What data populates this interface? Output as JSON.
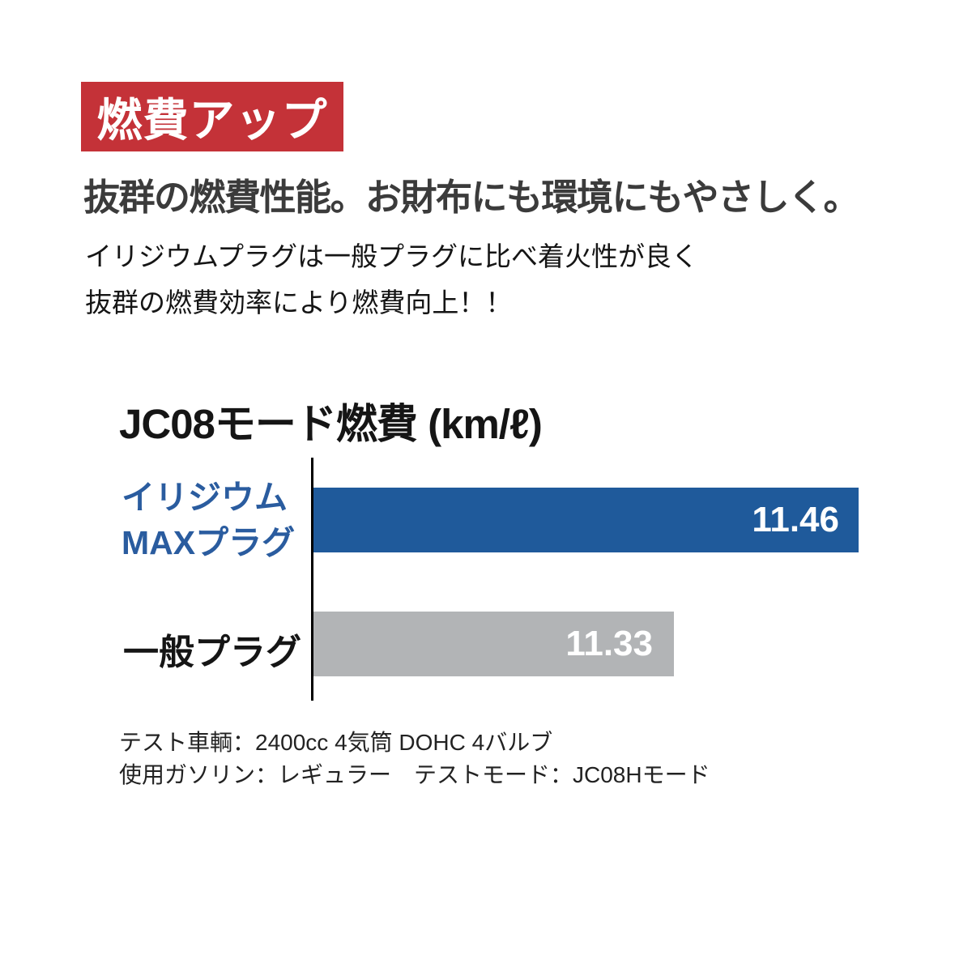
{
  "badge": {
    "label": "燃費アップ",
    "bg_color": "#c43238",
    "text_color": "#ffffff"
  },
  "headline": {
    "text": "抜群の燃費性能。お財布にも環境にもやさしく。"
  },
  "description": {
    "lines": [
      "イリジウムプラグは一般プラグに比べ着火性が良く",
      "抜群の燃費効率により燃費向上！！"
    ]
  },
  "chart": {
    "title": "JC08モード燃費 (km/ℓ)",
    "bars": [
      {
        "label_line1": "イリジウム",
        "label_line2": "MAXプラグ",
        "value": "11.46"
      },
      {
        "label": "一般プラグ",
        "value": "11.33"
      }
    ]
  },
  "chart_data": {
    "type": "bar",
    "orientation": "horizontal",
    "title": "JC08モード燃費 (km/ℓ)",
    "categories": [
      "イリジウムMAXプラグ",
      "一般プラグ"
    ],
    "values": [
      11.46,
      11.33
    ],
    "value_labels": [
      "11.46",
      "11.33"
    ],
    "unit": "km/ℓ",
    "bar_colors": [
      "#1f5a9b",
      "#b2b4b6"
    ],
    "category_label_colors": [
      "#2a5c9f",
      "#151515"
    ],
    "value_label_color": "#ffffff",
    "value_label_position": "inside-end",
    "axis_baseline_color": "#000000",
    "grid": false,
    "legend": false,
    "note": "truncated scale; bar lengths exaggerate difference"
  },
  "footnotes": [
    "テスト車輌：2400cc 4気筒 DOHC 4バルブ",
    "使用ガソリン：レギュラー　テストモード：JC08Hモード"
  ]
}
